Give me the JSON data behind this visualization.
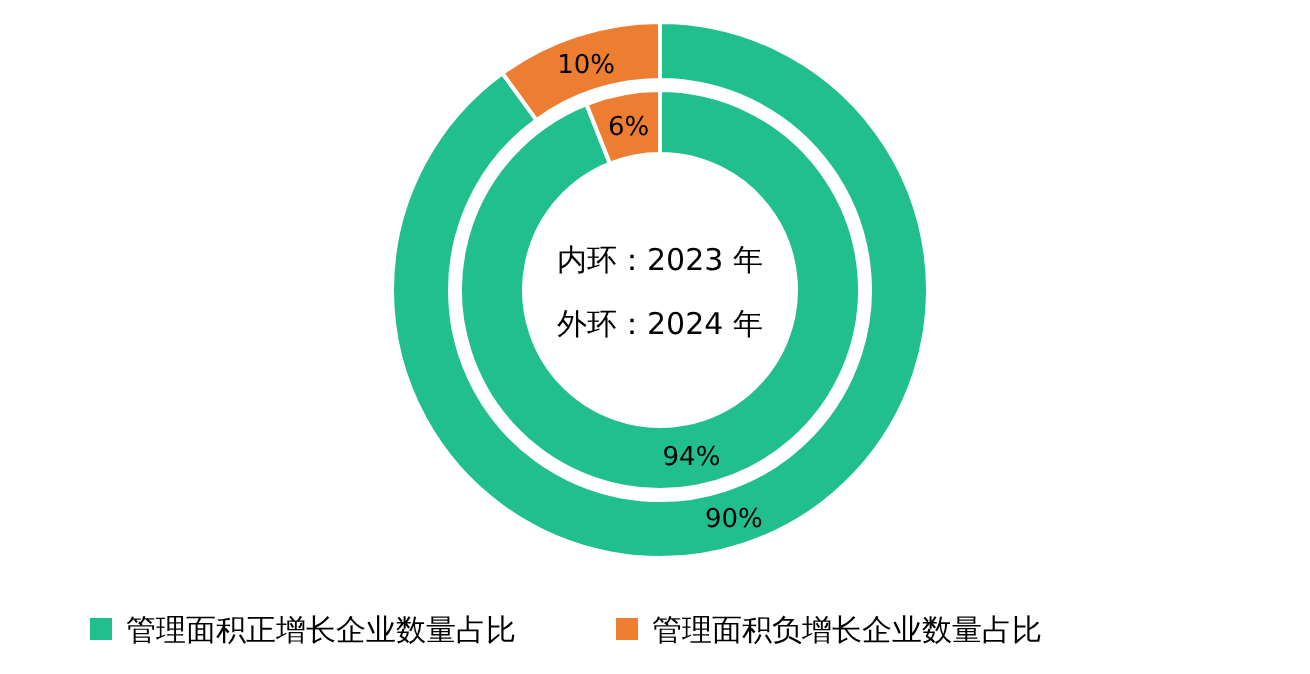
{
  "chart_data": [
    {
      "type": "donut",
      "categories": [
        "管理面积正增长企业数量占比",
        "管理面积负增长企业数量占比"
      ],
      "colors": [
        "#22bf8e",
        "#ed7d31"
      ],
      "values": [
        90,
        10
      ],
      "value_labels": [
        "90%",
        "10%"
      ],
      "legend": "bottom"
    },
    {
      "type": "donut",
      "categories": [
        null,
        null
      ],
      "colors": [
        "#22bf8e",
        "#ed7d31"
      ],
      "values": [
        94,
        6
      ],
      "value_labels": [
        "94%",
        "6%"
      ],
      "annotations": [
        "内环：2023 年",
        "外环：2024 年"
      ]
    }
  ]
}
